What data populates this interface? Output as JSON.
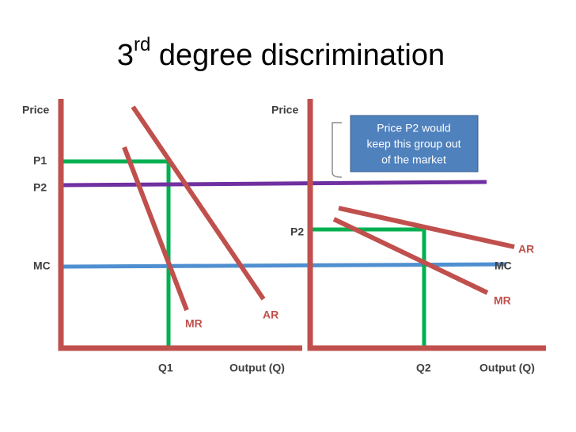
{
  "title": {
    "main": "3",
    "sup": "rd",
    "rest": " degree discrimination"
  },
  "left_panel": {
    "y_axis_label": "Price",
    "p1_label": "P1",
    "p2_label": "P2",
    "mc_label": "MC",
    "q1_label": "Q1",
    "x_axis_label": "Output (Q)",
    "mr_label": "MR",
    "ar_label": "AR"
  },
  "right_panel": {
    "y_axis_label": "Price",
    "p2_label": "P2",
    "ar_label": "AR",
    "mc_label": "MC",
    "mr_label": "MR",
    "q2_label": "Q2",
    "x_axis_label": "Output (Q)"
  },
  "callout": {
    "lines": [
      "Price P2 would",
      "keep this group out",
      "of the market"
    ]
  }
}
